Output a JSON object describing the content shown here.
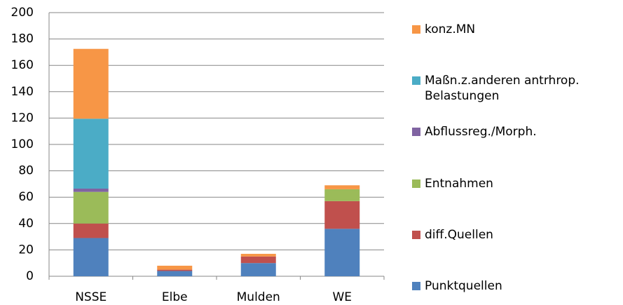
{
  "chart_data": {
    "type": "stacked_bar",
    "categories": [
      "NSSE",
      "Elbe",
      "Mulden",
      "WE"
    ],
    "series": [
      {
        "name": "Punktquellen",
        "color": "#4f81bd",
        "values": [
          29,
          4,
          10,
          36
        ]
      },
      {
        "name": "diff.Quellen",
        "color": "#c0504d",
        "values": [
          11,
          1,
          5,
          21
        ]
      },
      {
        "name": "Entnahmen",
        "color": "#9bbb59",
        "values": [
          24,
          0,
          0,
          9
        ]
      },
      {
        "name": "Abflussreg./Morph.",
        "color": "#8064a2",
        "values": [
          2.5,
          0,
          0,
          0
        ]
      },
      {
        "name": "Maßn.z.anderen antrhrop. Belastungen",
        "color": "#4bacc6",
        "values": [
          53,
          0,
          0,
          0
        ]
      },
      {
        "name": "konz.MN",
        "color": "#f79646",
        "values": [
          53,
          3,
          2,
          3
        ]
      }
    ],
    "ylim": [
      0,
      200
    ],
    "yticks": [
      0,
      20,
      40,
      60,
      80,
      100,
      120,
      140,
      160,
      180,
      200
    ],
    "grid": true,
    "legend": "right"
  }
}
